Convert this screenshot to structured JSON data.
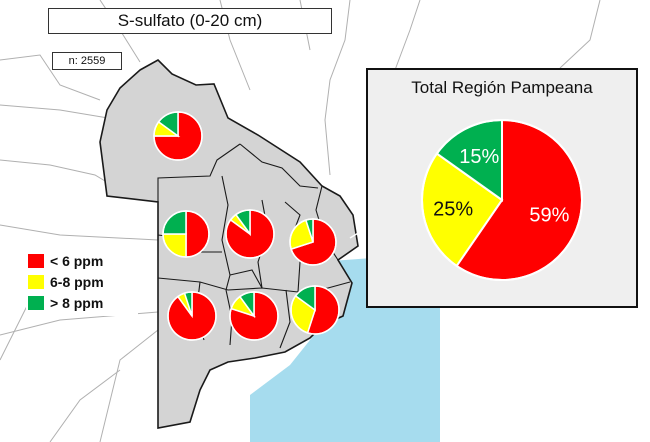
{
  "title": "S-sulfato (0-20 cm)",
  "sample_count": "n: 2559",
  "legend": [
    {
      "label": "< 6 ppm",
      "color": "#ff0000"
    },
    {
      "label": "6-8 ppm",
      "color": "#ffff00"
    },
    {
      "label": "> 8 ppm",
      "color": "#00b050"
    }
  ],
  "colors": {
    "land": "#d4d4d4",
    "sea": "#a6dcee",
    "border": "#1a1a1a",
    "thin_border": "#b0b0b0"
  },
  "inset": {
    "title": "Total Región Pampeana"
  },
  "chart_data": [
    {
      "type": "pie",
      "title": "Total Región Pampeana",
      "categories": [
        "< 6 ppm",
        "6-8 ppm",
        "> 8 ppm"
      ],
      "values": [
        59,
        25,
        15
      ],
      "labels": [
        "59%",
        "25%",
        "15%"
      ]
    },
    {
      "type": "pie",
      "categories": [
        "< 6 ppm",
        "6-8 ppm",
        "> 8 ppm"
      ],
      "values": [
        75,
        10,
        15
      ]
    },
    {
      "type": "pie",
      "categories": [
        "< 6 ppm",
        "6-8 ppm",
        "> 8 ppm"
      ],
      "values": [
        50,
        25,
        25
      ]
    },
    {
      "type": "pie",
      "categories": [
        "< 6 ppm",
        "6-8 ppm",
        "> 8 ppm"
      ],
      "values": [
        85,
        5,
        10
      ]
    },
    {
      "type": "pie",
      "categories": [
        "< 6 ppm",
        "6-8 ppm",
        "> 8 ppm"
      ],
      "values": [
        70,
        25,
        5
      ]
    },
    {
      "type": "pie",
      "categories": [
        "< 6 ppm",
        "6-8 ppm",
        "> 8 ppm"
      ],
      "values": [
        90,
        5,
        5
      ]
    },
    {
      "type": "pie",
      "categories": [
        "< 6 ppm",
        "6-8 ppm",
        "> 8 ppm"
      ],
      "values": [
        80,
        10,
        10
      ]
    },
    {
      "type": "pie",
      "categories": [
        "< 6 ppm",
        "6-8 ppm",
        "> 8 ppm"
      ],
      "values": [
        55,
        30,
        15
      ]
    }
  ]
}
